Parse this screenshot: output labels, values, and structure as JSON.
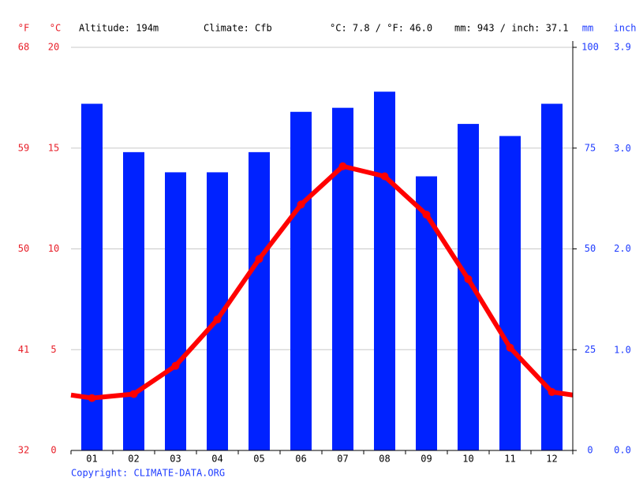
{
  "chart_data": {
    "type": "bar-line",
    "header": [
      "Altitude: 194m",
      "Climate: Cfb",
      "°C: 7.8 / °F: 46.0",
      "mm: 943 / inch: 37.1"
    ],
    "source": "Copyright: CLIMATE-DATA.ORG",
    "y_label": "°C",
    "yf_label": "°F",
    "y2_label": "mm",
    "y3_label": "inch",
    "categories": [
      "01",
      "02",
      "03",
      "04",
      "05",
      "06",
      "07",
      "08",
      "09",
      "10",
      "11",
      "12"
    ],
    "series": [
      {
        "type": "bar",
        "axis": "y2",
        "color": "#0022ff",
        "values": [
          86,
          74,
          69,
          69,
          74,
          84,
          85,
          89,
          68,
          81,
          78,
          86
        ]
      },
      {
        "type": "line",
        "axis": "y",
        "color": "#ff0000",
        "values": [
          2.6,
          2.8,
          4.2,
          6.5,
          9.5,
          12.2,
          14.1,
          13.6,
          11.7,
          8.5,
          5.1,
          2.9
        ]
      }
    ],
    "ylim": [
      0,
      20
    ],
    "yticks": [
      0,
      5,
      10,
      15,
      20
    ],
    "yf_lim": [
      32,
      68
    ],
    "yf_ticks": [
      32,
      41,
      50,
      59,
      68
    ],
    "y2lim": [
      0,
      100
    ],
    "y2ticks": [
      0,
      25,
      50,
      75,
      100
    ],
    "y3lim": [
      0,
      3.94
    ],
    "y3ticks": [
      {
        "value": 0,
        "label": "0.0"
      },
      {
        "value": 0.98,
        "label": "1.0"
      },
      {
        "value": 1.97,
        "label": "2.0"
      },
      {
        "value": 2.95,
        "label": "3.0"
      },
      {
        "value": 3.94,
        "label": "3.9"
      }
    ],
    "grid": true
  }
}
